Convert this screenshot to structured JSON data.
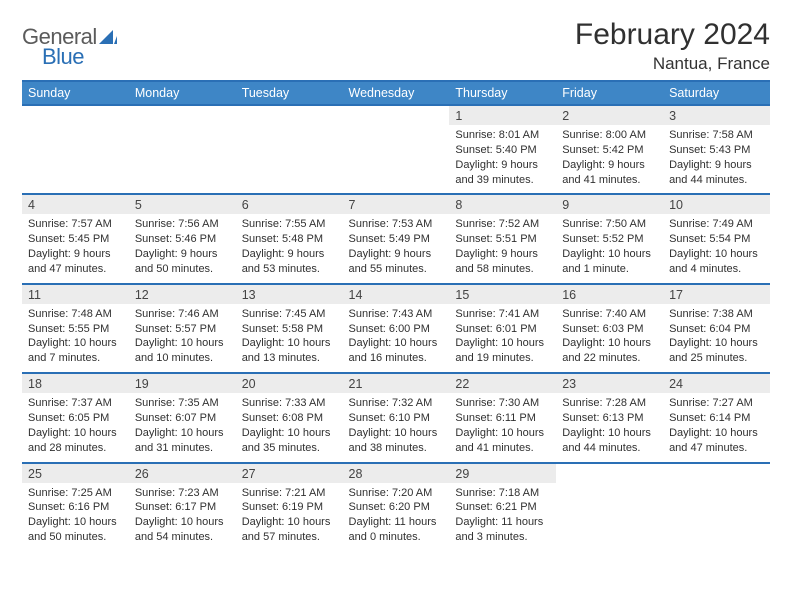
{
  "brand": {
    "part1": "General",
    "part2": "Blue"
  },
  "title": "February 2024",
  "location": "Nantua, France",
  "colors": {
    "header_bg": "#3e86c6",
    "header_border": "#2a6fb5",
    "daynum_bg": "#ececec",
    "text": "#303030",
    "logo_gray": "#5b5b5b",
    "logo_blue": "#2a6fb5"
  },
  "layout": {
    "columns": 7,
    "first_weekday_index": 4,
    "num_days": 29
  },
  "weekdays": [
    "Sunday",
    "Monday",
    "Tuesday",
    "Wednesday",
    "Thursday",
    "Friday",
    "Saturday"
  ],
  "days": [
    {
      "n": 1,
      "sr": "8:01 AM",
      "ss": "5:40 PM",
      "dl": "9 hours and 39 minutes."
    },
    {
      "n": 2,
      "sr": "8:00 AM",
      "ss": "5:42 PM",
      "dl": "9 hours and 41 minutes."
    },
    {
      "n": 3,
      "sr": "7:58 AM",
      "ss": "5:43 PM",
      "dl": "9 hours and 44 minutes."
    },
    {
      "n": 4,
      "sr": "7:57 AM",
      "ss": "5:45 PM",
      "dl": "9 hours and 47 minutes."
    },
    {
      "n": 5,
      "sr": "7:56 AM",
      "ss": "5:46 PM",
      "dl": "9 hours and 50 minutes."
    },
    {
      "n": 6,
      "sr": "7:55 AM",
      "ss": "5:48 PM",
      "dl": "9 hours and 53 minutes."
    },
    {
      "n": 7,
      "sr": "7:53 AM",
      "ss": "5:49 PM",
      "dl": "9 hours and 55 minutes."
    },
    {
      "n": 8,
      "sr": "7:52 AM",
      "ss": "5:51 PM",
      "dl": "9 hours and 58 minutes."
    },
    {
      "n": 9,
      "sr": "7:50 AM",
      "ss": "5:52 PM",
      "dl": "10 hours and 1 minute."
    },
    {
      "n": 10,
      "sr": "7:49 AM",
      "ss": "5:54 PM",
      "dl": "10 hours and 4 minutes."
    },
    {
      "n": 11,
      "sr": "7:48 AM",
      "ss": "5:55 PM",
      "dl": "10 hours and 7 minutes."
    },
    {
      "n": 12,
      "sr": "7:46 AM",
      "ss": "5:57 PM",
      "dl": "10 hours and 10 minutes."
    },
    {
      "n": 13,
      "sr": "7:45 AM",
      "ss": "5:58 PM",
      "dl": "10 hours and 13 minutes."
    },
    {
      "n": 14,
      "sr": "7:43 AM",
      "ss": "6:00 PM",
      "dl": "10 hours and 16 minutes."
    },
    {
      "n": 15,
      "sr": "7:41 AM",
      "ss": "6:01 PM",
      "dl": "10 hours and 19 minutes."
    },
    {
      "n": 16,
      "sr": "7:40 AM",
      "ss": "6:03 PM",
      "dl": "10 hours and 22 minutes."
    },
    {
      "n": 17,
      "sr": "7:38 AM",
      "ss": "6:04 PM",
      "dl": "10 hours and 25 minutes."
    },
    {
      "n": 18,
      "sr": "7:37 AM",
      "ss": "6:05 PM",
      "dl": "10 hours and 28 minutes."
    },
    {
      "n": 19,
      "sr": "7:35 AM",
      "ss": "6:07 PM",
      "dl": "10 hours and 31 minutes."
    },
    {
      "n": 20,
      "sr": "7:33 AM",
      "ss": "6:08 PM",
      "dl": "10 hours and 35 minutes."
    },
    {
      "n": 21,
      "sr": "7:32 AM",
      "ss": "6:10 PM",
      "dl": "10 hours and 38 minutes."
    },
    {
      "n": 22,
      "sr": "7:30 AM",
      "ss": "6:11 PM",
      "dl": "10 hours and 41 minutes."
    },
    {
      "n": 23,
      "sr": "7:28 AM",
      "ss": "6:13 PM",
      "dl": "10 hours and 44 minutes."
    },
    {
      "n": 24,
      "sr": "7:27 AM",
      "ss": "6:14 PM",
      "dl": "10 hours and 47 minutes."
    },
    {
      "n": 25,
      "sr": "7:25 AM",
      "ss": "6:16 PM",
      "dl": "10 hours and 50 minutes."
    },
    {
      "n": 26,
      "sr": "7:23 AM",
      "ss": "6:17 PM",
      "dl": "10 hours and 54 minutes."
    },
    {
      "n": 27,
      "sr": "7:21 AM",
      "ss": "6:19 PM",
      "dl": "10 hours and 57 minutes."
    },
    {
      "n": 28,
      "sr": "7:20 AM",
      "ss": "6:20 PM",
      "dl": "11 hours and 0 minutes."
    },
    {
      "n": 29,
      "sr": "7:18 AM",
      "ss": "6:21 PM",
      "dl": "11 hours and 3 minutes."
    }
  ],
  "labels": {
    "sunrise": "Sunrise:",
    "sunset": "Sunset:",
    "daylight": "Daylight:"
  }
}
